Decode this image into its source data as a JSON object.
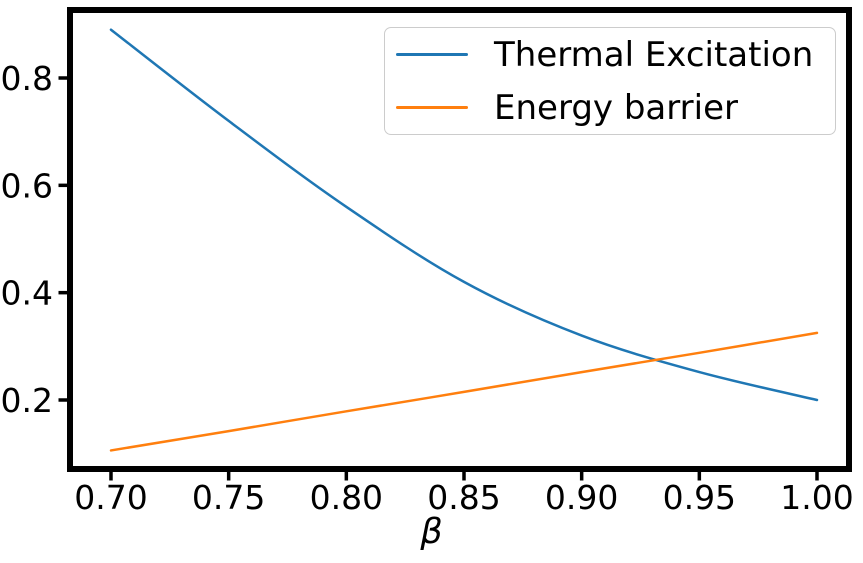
{
  "chart_data": {
    "type": "line",
    "title": "",
    "xlabel": "β",
    "ylabel": "",
    "x": [
      0.7,
      0.75,
      0.8,
      0.85,
      0.9,
      0.95,
      1.0
    ],
    "series": [
      {
        "name": "Thermal Excitation",
        "color": "#1f77b4",
        "values": [
          0.89,
          0.72,
          0.56,
          0.42,
          0.32,
          0.252,
          0.2
        ]
      },
      {
        "name": "Energy barrier",
        "color": "#ff7f0e",
        "values": [
          0.106,
          0.142,
          0.179,
          0.215,
          0.252,
          0.288,
          0.325
        ]
      }
    ],
    "x_tick_labels": [
      "0.70",
      "0.75",
      "0.80",
      "0.85",
      "0.90",
      "0.95",
      "1.00"
    ],
    "y_tick_labels": [
      "0.2",
      "0.4",
      "0.6",
      "0.8"
    ],
    "xlim": [
      0.685,
      1.015
    ],
    "ylim": [
      0.067,
      0.929
    ],
    "grid": false,
    "legend_position": "upper right"
  },
  "style": {
    "background": "#ffffff",
    "axis_color": "#000000",
    "legend_border_color": "#cccccc",
    "line_width": 2.5,
    "spine_width": 6
  }
}
